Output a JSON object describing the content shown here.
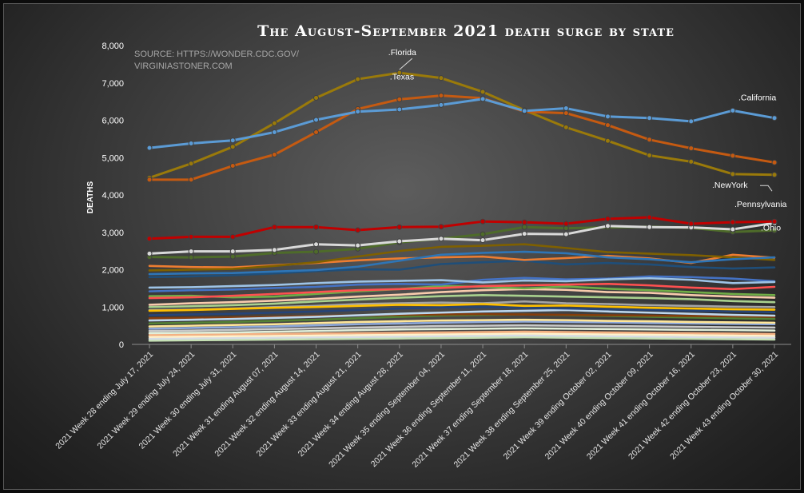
{
  "chart_data": {
    "type": "line",
    "title": "The August-September 2021 death surge by state",
    "source_line1": "SOURCE: HTTPS://WONDER.CDC.GOV/",
    "source_line2": "VIRGINIASTONER.COM",
    "ylabel": "DEATHS",
    "ylim": [
      0,
      8000
    ],
    "yticks": [
      "0",
      "1,000",
      "2,000",
      "3,000",
      "4,000",
      "5,000",
      "6,000",
      "7,000",
      "8,000"
    ],
    "grid": false,
    "categories": [
      "2021 Week 28 ending July 17, 2021",
      "2021 Week 29 ending July 24, 2021",
      "2021 Week 30 ending July 31, 2021",
      "2021 Week 31 ending August 07, 2021",
      "2021 Week 32 ending August 14, 2021",
      "2021 Week 33 ending August 21, 2021",
      "2021 Week 34 ending August 28, 2021",
      "2021 Week 35 ending September 04, 2021",
      "2021 Week 36 ending September 11, 2021",
      "2021 Week 37 ending September 18, 2021",
      "2021 Week 38 ending September 25, 2021",
      "2021 Week 39 ending October 02, 2021",
      "2021 Week 40 ending October 09, 2021",
      "2021 Week 41 ending October 16, 2021",
      "2021 Week 42 ending October 23, 2021",
      "2021 Week 43 ending October 30, 2021"
    ],
    "series": [
      {
        "name": ".California",
        "color": "#5b9bd5",
        "values": [
          5260,
          5380,
          5460,
          5680,
          6010,
          6230,
          6290,
          6410,
          6570,
          6250,
          6320,
          6100,
          6060,
          5970,
          6260,
          6060
        ]
      },
      {
        "name": ".Texas",
        "color": "#c55a11",
        "values": [
          4410,
          4410,
          4780,
          5080,
          5680,
          6300,
          6560,
          6660,
          6590,
          6230,
          6190,
          5870,
          5480,
          5250,
          5050,
          4870
        ]
      },
      {
        "name": ".Florida",
        "color": "#9a7a0a",
        "values": [
          4460,
          4840,
          5290,
          5920,
          6600,
          7100,
          7270,
          7130,
          6760,
          6270,
          5810,
          5450,
          5060,
          4890,
          4560,
          4540
        ]
      },
      {
        "name": ".NewYork",
        "color": "#c00000",
        "values": [
          2830,
          2880,
          2880,
          3140,
          3140,
          3060,
          3140,
          3150,
          3290,
          3270,
          3230,
          3360,
          3400,
          3230,
          3270,
          3290
        ]
      },
      {
        "name": ".Pennsylvania",
        "color": "#d9d9d9",
        "values": [
          2430,
          2490,
          2490,
          2530,
          2680,
          2650,
          2760,
          2830,
          2790,
          2960,
          2950,
          3170,
          3140,
          3130,
          3080,
          3250
        ]
      },
      {
        "name": ".Ohio",
        "color": "#4e6b2a",
        "values": [
          2340,
          2330,
          2350,
          2450,
          2480,
          2560,
          2730,
          2830,
          2950,
          3140,
          3110,
          3130,
          3150,
          3120,
          3010,
          3050
        ]
      },
      {
        "color": "#2e75b6",
        "values": [
          1880,
          1900,
          1910,
          1950,
          1990,
          2080,
          2240,
          2400,
          2450,
          2480,
          2440,
          2330,
          2280,
          2200,
          2280,
          2330
        ]
      },
      {
        "color": "#7f6000",
        "values": [
          1980,
          2000,
          2020,
          2100,
          2200,
          2350,
          2500,
          2610,
          2640,
          2680,
          2580,
          2470,
          2430,
          2390,
          2330,
          2260
        ]
      },
      {
        "color": "#ed7d31",
        "values": [
          2100,
          2070,
          2060,
          2120,
          2180,
          2250,
          2300,
          2330,
          2350,
          2260,
          2310,
          2370,
          2300,
          2180,
          2400,
          2320
        ]
      },
      {
        "color": "#1f4e79",
        "values": [
          1800,
          1820,
          1850,
          1900,
          1960,
          2010,
          2000,
          2150,
          2200,
          2240,
          2140,
          2180,
          2140,
          2070,
          2030,
          2060
        ]
      },
      {
        "color": "#9dc3e6",
        "values": [
          1520,
          1530,
          1560,
          1590,
          1640,
          1680,
          1700,
          1720,
          1660,
          1710,
          1690,
          1740,
          1770,
          1730,
          1640,
          1670
        ]
      },
      {
        "color": "#4472c4",
        "values": [
          1420,
          1450,
          1470,
          1510,
          1540,
          1600,
          1620,
          1600,
          1730,
          1780,
          1740,
          1760,
          1820,
          1800,
          1760,
          1690
        ]
      },
      {
        "color": "#ff5050",
        "values": [
          1240,
          1260,
          1300,
          1350,
          1400,
          1450,
          1480,
          1510,
          1560,
          1580,
          1600,
          1620,
          1580,
          1520,
          1480,
          1540
        ]
      },
      {
        "color": "#70ad47",
        "values": [
          1290,
          1300,
          1260,
          1280,
          1350,
          1420,
          1480,
          1560,
          1540,
          1500,
          1550,
          1490,
          1450,
          1400,
          1350,
          1320
        ]
      },
      {
        "color": "#f8cbad",
        "values": [
          1060,
          1100,
          1130,
          1170,
          1220,
          1280,
          1330,
          1400,
          1450,
          1480,
          1460,
          1400,
          1380,
          1320,
          1280,
          1250
        ]
      },
      {
        "color": "#a9d18e",
        "values": [
          1000,
          1020,
          1050,
          1090,
          1150,
          1200,
          1250,
          1290,
          1320,
          1300,
          1280,
          1260,
          1240,
          1210,
          1160,
          1130
        ]
      },
      {
        "color": "#ffc000",
        "values": [
          900,
          920,
          950,
          980,
          1000,
          1030,
          1060,
          1050,
          1080,
          1030,
          1040,
          1010,
          980,
          960,
          940,
          930
        ]
      },
      {
        "color": "#a5a5a5",
        "values": [
          920,
          930,
          960,
          1000,
          1030,
          1080,
          1100,
          1120,
          1100,
          1150,
          1100,
          1080,
          1050,
          1030,
          1010,
          1000
        ]
      },
      {
        "color": "#264478",
        "values": [
          780,
          800,
          820,
          850,
          880,
          920,
          960,
          990,
          1000,
          980,
          960,
          940,
          920,
          900,
          880,
          860
        ]
      },
      {
        "color": "#bdd7ee",
        "values": [
          640,
          660,
          680,
          710,
          740,
          780,
          820,
          850,
          880,
          900,
          920,
          880,
          850,
          820,
          790,
          770
        ]
      },
      {
        "color": "#843c0c",
        "values": [
          700,
          710,
          720,
          740,
          760,
          780,
          790,
          800,
          810,
          800,
          790,
          780,
          770,
          760,
          750,
          740
        ]
      },
      {
        "color": "#548235",
        "values": [
          560,
          580,
          600,
          630,
          660,
          700,
          740,
          770,
          790,
          800,
          780,
          760,
          740,
          720,
          700,
          680
        ]
      },
      {
        "color": "#ffe699",
        "values": [
          480,
          500,
          520,
          540,
          570,
          600,
          620,
          640,
          650,
          660,
          650,
          630,
          620,
          600,
          590,
          580
        ]
      },
      {
        "color": "#8faadc",
        "values": [
          420,
          440,
          460,
          480,
          510,
          540,
          560,
          580,
          600,
          610,
          600,
          590,
          570,
          560,
          550,
          540
        ]
      },
      {
        "color": "#c9c9c9",
        "values": [
          360,
          370,
          390,
          410,
          430,
          450,
          470,
          490,
          500,
          510,
          500,
          490,
          480,
          470,
          460,
          450
        ]
      },
      {
        "color": "#e2efda",
        "values": [
          300,
          310,
          320,
          340,
          360,
          380,
          400,
          410,
          420,
          430,
          420,
          410,
          400,
          390,
          380,
          370
        ]
      },
      {
        "color": "#f4b183",
        "values": [
          250,
          260,
          270,
          280,
          290,
          300,
          310,
          320,
          330,
          340,
          330,
          320,
          310,
          300,
          290,
          280
        ]
      },
      {
        "color": "#fff2cc",
        "values": [
          200,
          210,
          220,
          230,
          240,
          250,
          260,
          270,
          280,
          290,
          280,
          270,
          260,
          250,
          240,
          230
        ]
      },
      {
        "color": "#d6dce5",
        "values": [
          150,
          160,
          170,
          180,
          190,
          200,
          210,
          220,
          230,
          240,
          230,
          220,
          210,
          200,
          190,
          180
        ]
      },
      {
        "color": "#c5e0b4",
        "values": [
          100,
          110,
          120,
          130,
          140,
          150,
          160,
          170,
          180,
          190,
          180,
          170,
          160,
          150,
          140,
          130
        ]
      }
    ]
  }
}
